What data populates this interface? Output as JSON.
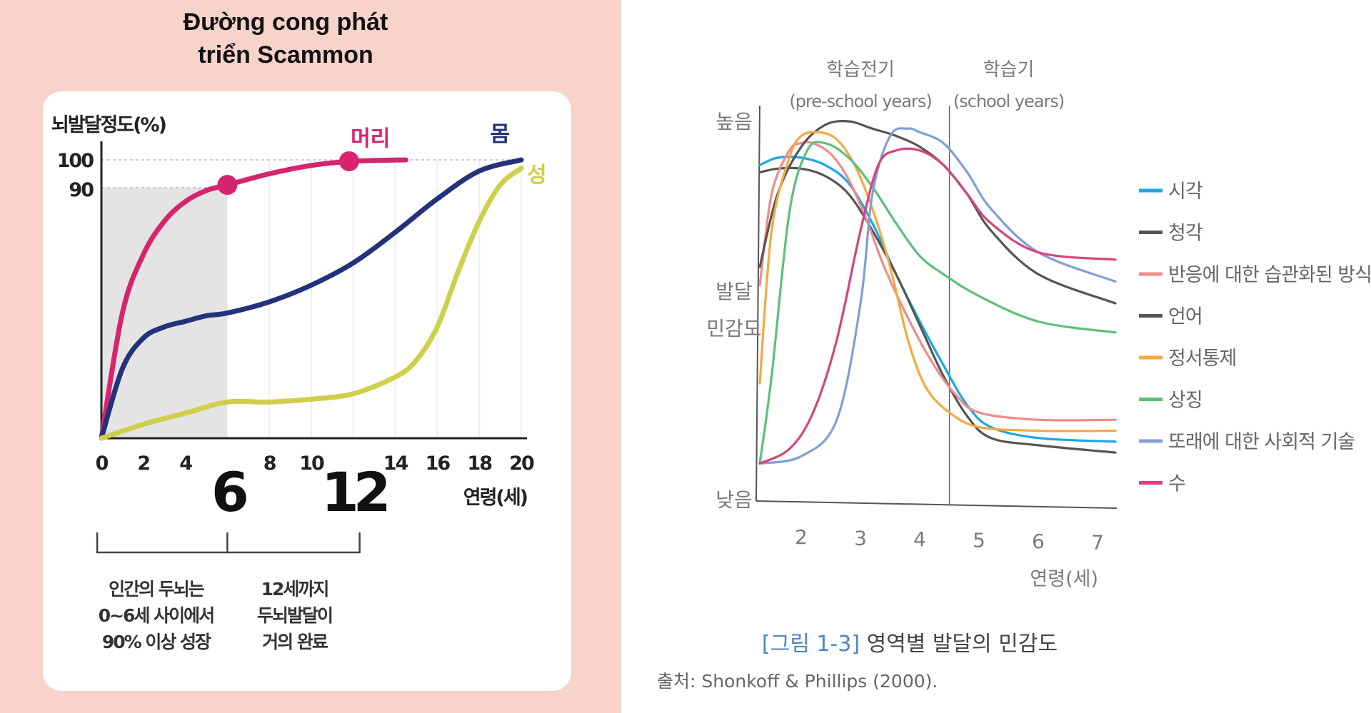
{
  "left": {
    "title_line1": "Đường cong phát",
    "title_line2": "triển Scammon",
    "chart_data": {
      "type": "line",
      "ylabel": "뇌발달정도(%)",
      "xlabel": "연령(세)",
      "xlim": [
        0,
        20
      ],
      "ylim": [
        0,
        100
      ],
      "x_ticks": [
        "0",
        "2",
        "4",
        "8",
        "10",
        "14",
        "16",
        "18",
        "20"
      ],
      "big_ticks": [
        "6",
        "12"
      ],
      "y_ticks": [
        "100",
        "90"
      ],
      "shaded_region": {
        "x": [
          0,
          6
        ],
        "y": [
          0,
          90
        ]
      },
      "series": [
        {
          "name": "머리",
          "color": "#d6246e",
          "x": [
            0,
            1,
            2,
            3,
            4,
            5,
            6,
            8,
            10,
            12,
            14.5
          ],
          "y": [
            0,
            45,
            66,
            78,
            85,
            89,
            91,
            95,
            98,
            99.5,
            100
          ]
        },
        {
          "name": "몸",
          "color": "#23327a",
          "x": [
            0,
            1,
            2,
            3,
            4,
            5,
            6,
            8,
            10,
            12,
            14,
            16,
            18,
            20
          ],
          "y": [
            0,
            25,
            36,
            40,
            42,
            44,
            45,
            49,
            55,
            63,
            74,
            86,
            96,
            100
          ]
        },
        {
          "name": "성",
          "color": "#cfcf4c",
          "x": [
            0,
            2,
            4,
            6,
            8,
            10,
            12,
            14,
            15,
            16,
            17,
            18,
            19,
            20
          ],
          "y": [
            0,
            5,
            9,
            13,
            13,
            14,
            16,
            22,
            28,
            40,
            60,
            78,
            91,
            97
          ]
        }
      ],
      "markers": [
        {
          "series": "머리",
          "x": 6,
          "y": 91
        },
        {
          "series": "머리",
          "x": 11.8,
          "y": 99.5
        }
      ]
    },
    "brackets": [
      {
        "text_lines": [
          "인간의 두뇌는",
          "0~6세 사이에서",
          "90% 이상 성장"
        ]
      },
      {
        "text_lines": [
          "12세까지",
          "두뇌발달이",
          "거의 완료"
        ]
      }
    ]
  },
  "right": {
    "chart_data": {
      "type": "line",
      "y_labels": {
        "high": "높음",
        "mid_line1": "발달",
        "mid_line2": "민감도",
        "low": "낮음"
      },
      "xlabel": "연령(세)",
      "x_ticks": [
        "2",
        "3",
        "4",
        "5",
        "6",
        "7"
      ],
      "xlim": [
        1.3,
        7.3
      ],
      "ylim": [
        0,
        100
      ],
      "periods": [
        {
          "name": "학습전기",
          "sub": "(pre-school years)"
        },
        {
          "name": "학습기",
          "sub": "(school years)"
        }
      ],
      "period_divider_x": 4.5,
      "series": [
        {
          "name": "시각",
          "color": "#1aa7e6",
          "x": [
            1.3,
            1.6,
            2,
            2.4,
            2.8,
            3.2,
            3.6,
            4,
            4.4,
            4.8,
            5.2,
            6,
            7.3
          ],
          "y": [
            88,
            90,
            90,
            88,
            83,
            72,
            58,
            45,
            33,
            22,
            16,
            13,
            12
          ]
        },
        {
          "name": "청각",
          "color": "#555555",
          "x": [
            1.3,
            1.6,
            2,
            2.4,
            2.8,
            3.2,
            3.6,
            4,
            4.4,
            4.8,
            5.2,
            6,
            7.3
          ],
          "y": [
            86,
            87,
            87,
            85,
            80,
            70,
            58,
            44,
            30,
            19,
            13,
            11,
            9
          ]
        },
        {
          "name": "반응에 대한 습관화된 방식",
          "color": "#f28a8a",
          "x": [
            1.3,
            1.5,
            1.8,
            2,
            2.2,
            2.5,
            2.8,
            3.1,
            3.4,
            3.8,
            4.2,
            4.6,
            5,
            6,
            7.3
          ],
          "y": [
            55,
            80,
            92,
            94,
            94,
            91,
            84,
            73,
            60,
            46,
            34,
            25,
            20,
            18,
            18
          ]
        },
        {
          "name": "언어",
          "color": "#555555",
          "x": [
            1.3,
            1.6,
            2,
            2.4,
            2.8,
            3.2,
            3.6,
            4,
            4.4,
            4.8,
            5.2,
            6,
            7.3
          ],
          "y": [
            60,
            80,
            93,
            99,
            100,
            98,
            96,
            93,
            88,
            80,
            70,
            58,
            50
          ]
        },
        {
          "name": "정서통제",
          "color": "#f7a840",
          "x": [
            1.3,
            1.5,
            1.8,
            2,
            2.3,
            2.6,
            2.9,
            3.2,
            3.5,
            3.8,
            4.1,
            4.5,
            5,
            6,
            7.3
          ],
          "y": [
            28,
            70,
            90,
            96,
            97,
            95,
            88,
            76,
            60,
            40,
            27,
            20,
            16,
            15,
            15
          ]
        },
        {
          "name": "상징",
          "color": "#5dbf7a",
          "x": [
            1.3,
            1.5,
            1.8,
            2.1,
            2.4,
            2.8,
            3.2,
            3.6,
            4,
            4.4,
            5,
            6,
            7.3
          ],
          "y": [
            6,
            30,
            75,
            92,
            94,
            90,
            82,
            72,
            63,
            58,
            52,
            45,
            42
          ]
        },
        {
          "name": "또래에 대한 사회적 기술",
          "color": "#7f9fd6",
          "x": [
            1.3,
            2,
            2.6,
            3,
            3.2,
            3.5,
            3.8,
            4,
            4.4,
            4.8,
            5.2,
            6,
            7.3
          ],
          "y": [
            6,
            8,
            18,
            50,
            80,
            96,
            98,
            97,
            94,
            86,
            76,
            64,
            56
          ]
        },
        {
          "name": "수",
          "color": "#d6437c",
          "x": [
            1.3,
            1.8,
            2.2,
            2.6,
            3,
            3.3,
            3.6,
            4,
            4.4,
            4.8,
            5.2,
            6,
            7.3
          ],
          "y": [
            6,
            10,
            20,
            40,
            70,
            88,
            92,
            92,
            88,
            80,
            72,
            64,
            62
          ]
        }
      ]
    },
    "caption_prefix": "[그림 1-3]",
    "caption_text": "영역별 발달의 민감도",
    "source": "출처: Shonkoff & Phillips (2000)."
  }
}
